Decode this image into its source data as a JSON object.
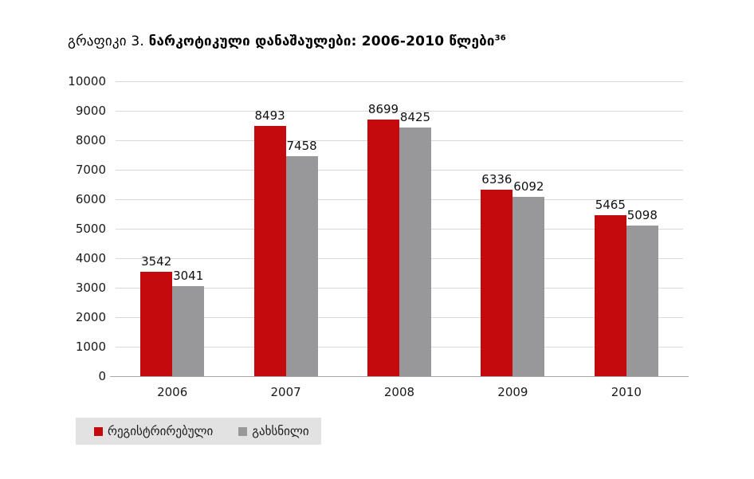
{
  "title": {
    "prefix": "გრაფიკი 3. ",
    "main": "ნარკოტიკული დანაშაულები: 2006-2010 წლები",
    "superscript": "36"
  },
  "chart_data": {
    "type": "bar",
    "categories": [
      "2006",
      "2007",
      "2008",
      "2009",
      "2010"
    ],
    "series": [
      {
        "name": "რეგისტრირებული",
        "color": "#c40a0c",
        "values": [
          3542,
          8493,
          8699,
          6336,
          5465
        ]
      },
      {
        "name": "გახსნილი",
        "color": "#98989a",
        "values": [
          3041,
          7458,
          8425,
          6092,
          5098
        ]
      }
    ],
    "ylabel": "",
    "xlabel": "",
    "ylim": [
      0,
      10000
    ],
    "ytick_step": 1000,
    "grid": true,
    "bar_labels": true,
    "legend_position": "bottom-left"
  },
  "colors": {
    "gridline": "#d9d9d9",
    "axis_line": "#a8a8a8",
    "legend_background": "#e2e2e2",
    "text": "#1a1a1a"
  }
}
